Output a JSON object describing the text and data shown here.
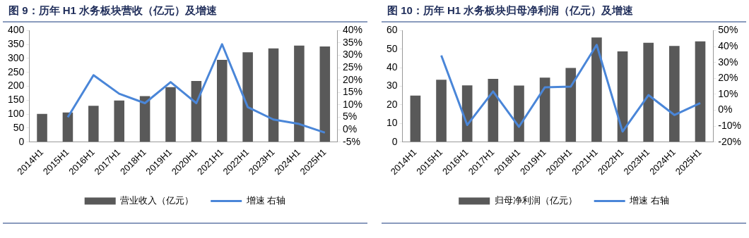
{
  "chart_data": [
    {
      "type": "bar",
      "title": "图 9：历年 H1 水务板块营收（亿元）及增速",
      "categories": [
        "2014H1",
        "2015H1",
        "2016H1",
        "2017H1",
        "2018H1",
        "2019H1",
        "2020H1",
        "2021H1",
        "2022H1",
        "2023H1",
        "2024H1",
        "2025H1"
      ],
      "series": [
        {
          "name": "营业收入（亿元）",
          "color": "#595959",
          "values": [
            101,
            106,
            130,
            149,
            165,
            197,
            219,
            295,
            322,
            336,
            346,
            343
          ]
        },
        {
          "name": "增速 右轴",
          "type": "line",
          "axis": "y2",
          "color": "#4a86d8",
          "values": [
            null,
            5,
            22,
            14.5,
            10.7,
            19.2,
            10.7,
            34.5,
            9.1,
            4.1,
            2.3,
            -1.2
          ]
        }
      ],
      "ylim": [
        0,
        400
      ],
      "yticks": [
        0,
        50,
        100,
        150,
        200,
        250,
        300,
        350,
        400
      ],
      "y2lim": [
        -5,
        40
      ],
      "y2ticks": [
        {
          "value": -5,
          "label": "-5%"
        },
        {
          "value": 0,
          "label": "0%"
        },
        {
          "value": 5,
          "label": "5%"
        },
        {
          "value": 10,
          "label": "10%"
        },
        {
          "value": 15,
          "label": "15%"
        },
        {
          "value": 20,
          "label": "20%"
        },
        {
          "value": 25,
          "label": "25%"
        },
        {
          "value": 30,
          "label": "30%"
        },
        {
          "value": 35,
          "label": "35%"
        },
        {
          "value": 40,
          "label": "40%"
        }
      ],
      "grid": false,
      "legend": "bottom",
      "marker": "none",
      "line_style": "solid"
    },
    {
      "type": "bar",
      "title": "图 10：历年 H1 水务板块归母净利润（亿元）及增速",
      "categories": [
        "2014H1",
        "2015H1",
        "2016H1",
        "2017H1",
        "2018H1",
        "2019H1",
        "2020H1",
        "2021H1",
        "2022H1",
        "2023H1",
        "2024H1",
        "2025H1"
      ],
      "series": [
        {
          "name": "归母净利润（亿元）",
          "color": "#595959",
          "values": [
            25,
            33.5,
            30.5,
            34,
            30.4,
            34.7,
            39.9,
            56.3,
            48.8,
            53.4,
            51.7,
            54.2
          ]
        },
        {
          "name": "增速 右轴",
          "type": "line",
          "axis": "y2",
          "color": "#4a86d8",
          "values": [
            null,
            34.4,
            -9.3,
            11.8,
            -10.4,
            14.4,
            14.8,
            41,
            -13.4,
            9.5,
            -3,
            4.5
          ]
        }
      ],
      "ylim": [
        0,
        60
      ],
      "yticks": [
        0,
        10,
        20,
        30,
        40,
        50,
        60
      ],
      "y2lim": [
        -20,
        50
      ],
      "y2ticks": [
        {
          "value": -20,
          "label": "-20%"
        },
        {
          "value": -10,
          "label": "-10%"
        },
        {
          "value": 0,
          "label": "0%"
        },
        {
          "value": 10,
          "label": "10%"
        },
        {
          "value": 20,
          "label": "20%"
        },
        {
          "value": 30,
          "label": "30%"
        },
        {
          "value": 40,
          "label": "40%"
        },
        {
          "value": 50,
          "label": "50%"
        }
      ],
      "grid": false,
      "legend": "bottom",
      "marker": "none",
      "line_style": "solid"
    }
  ]
}
